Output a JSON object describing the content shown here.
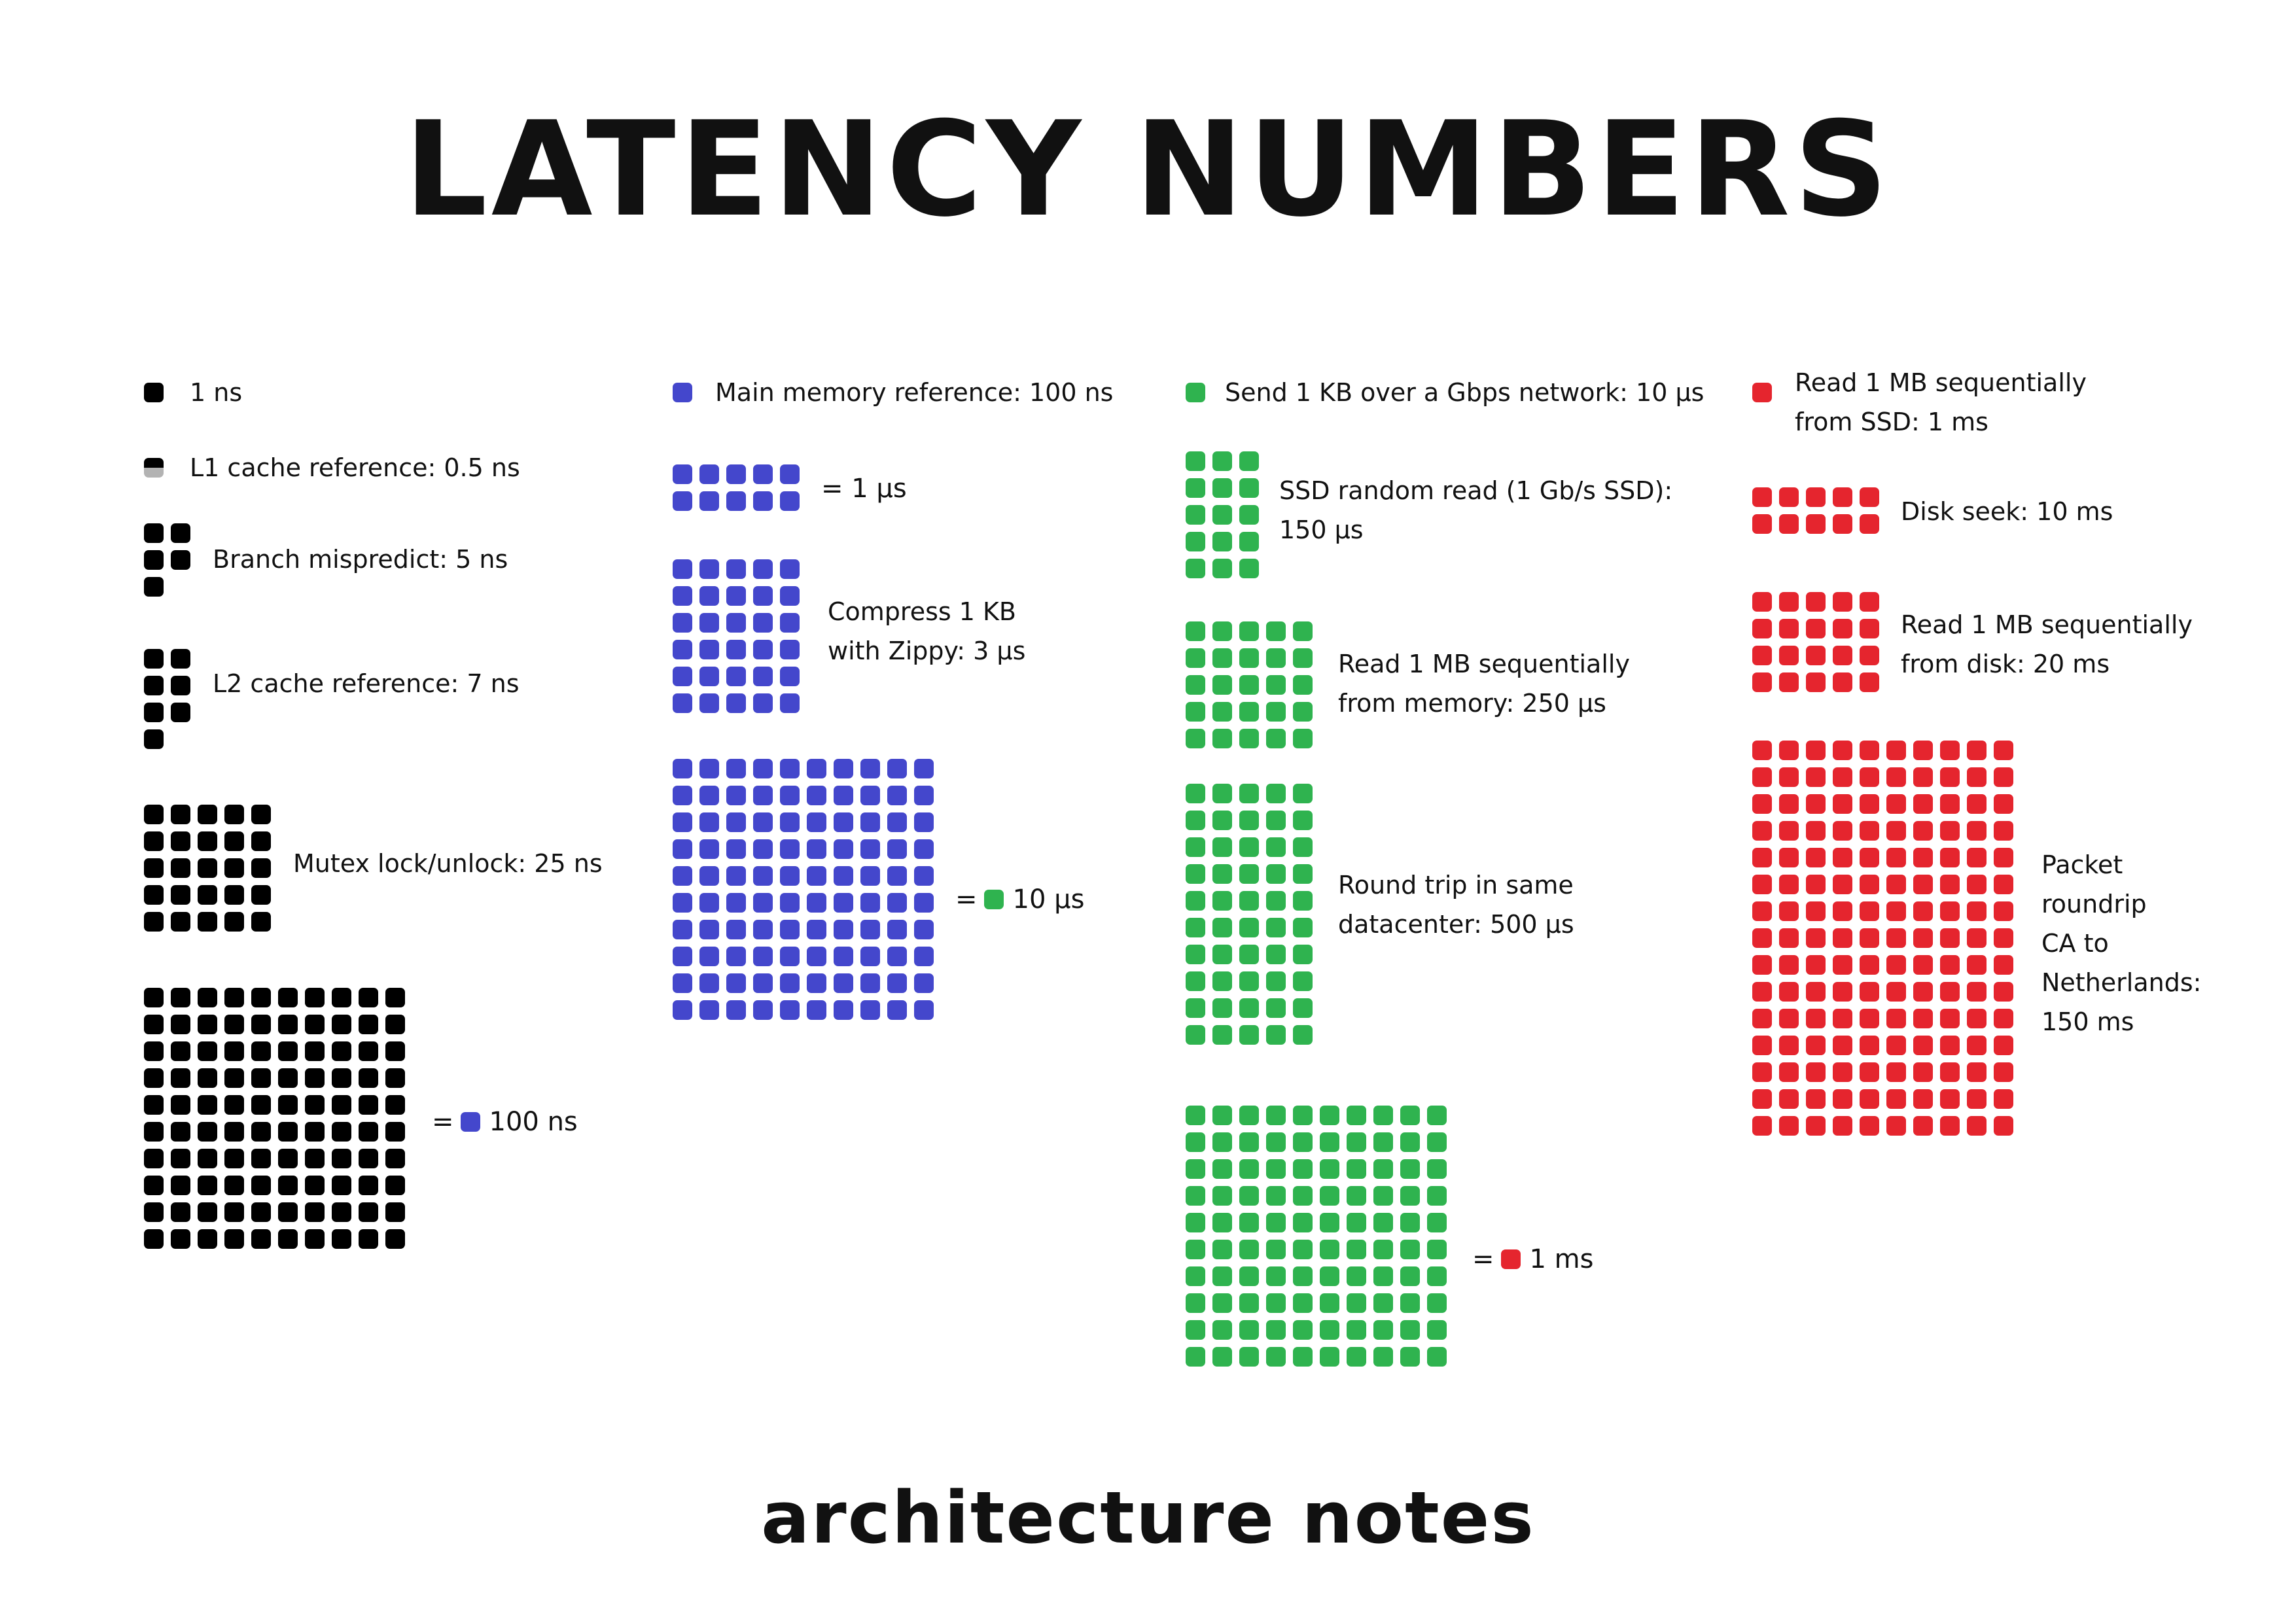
{
  "title": "LATENCY NUMBERS",
  "footer": "architecture notes",
  "colors": {
    "black": "#000000",
    "blue": "#4447cc",
    "green": "#2fb34f",
    "red": "#e5252e",
    "half_grey": "#b3b3b3"
  },
  "legend": {
    "one_ns": "1 ns",
    "main_memory": "Main memory reference: 100 ns",
    "send_1kb": "Send 1 KB over a Gbps network: 10 µs",
    "read_ssd": "Read 1 MB sequentially\nfrom SSD: 1 ms"
  },
  "items": {
    "l1": {
      "label": "L1 cache reference: 0.5 ns",
      "squares": 0.5
    },
    "branch": {
      "label": "Branch mispredict: 5 ns",
      "squares": 5
    },
    "l2": {
      "label": "L2 cache reference:  7 ns",
      "squares": 7
    },
    "mutex": {
      "label": "Mutex lock/unlock: 25 ns",
      "squares": 25
    },
    "hundred_ns": {
      "eq": "=",
      "value": "100 ns",
      "squares": 100
    },
    "one_us": {
      "eq": "= 1 µs",
      "squares": 10
    },
    "compress": {
      "label": "Compress 1 KB\nwith Zippy: 3 µs",
      "squares": 30
    },
    "ten_us": {
      "eq": "=",
      "value": "10 µs",
      "squares": 100
    },
    "ssd_random": {
      "label": "SSD random read (1 Gb/s SSD):\n150 µs",
      "squares": 15
    },
    "read_memory": {
      "label": "Read 1 MB sequentially\nfrom memory: 250 µs",
      "squares": 25
    },
    "round_trip": {
      "label": "Round trip in same\ndatacenter: 500 µs",
      "squares": 50
    },
    "one_ms": {
      "eq": "=",
      "value": "1 ms",
      "squares": 100
    },
    "disk_seek": {
      "label": "Disk seek: 10 ms",
      "squares": 10
    },
    "read_disk": {
      "label": "Read 1 MB sequentially\nfrom disk: 20 ms",
      "squares": 20
    },
    "packet": {
      "label": "Packet\nroundrip\nCA to\nNetherlands:\n150 ms",
      "squares": 150
    }
  }
}
